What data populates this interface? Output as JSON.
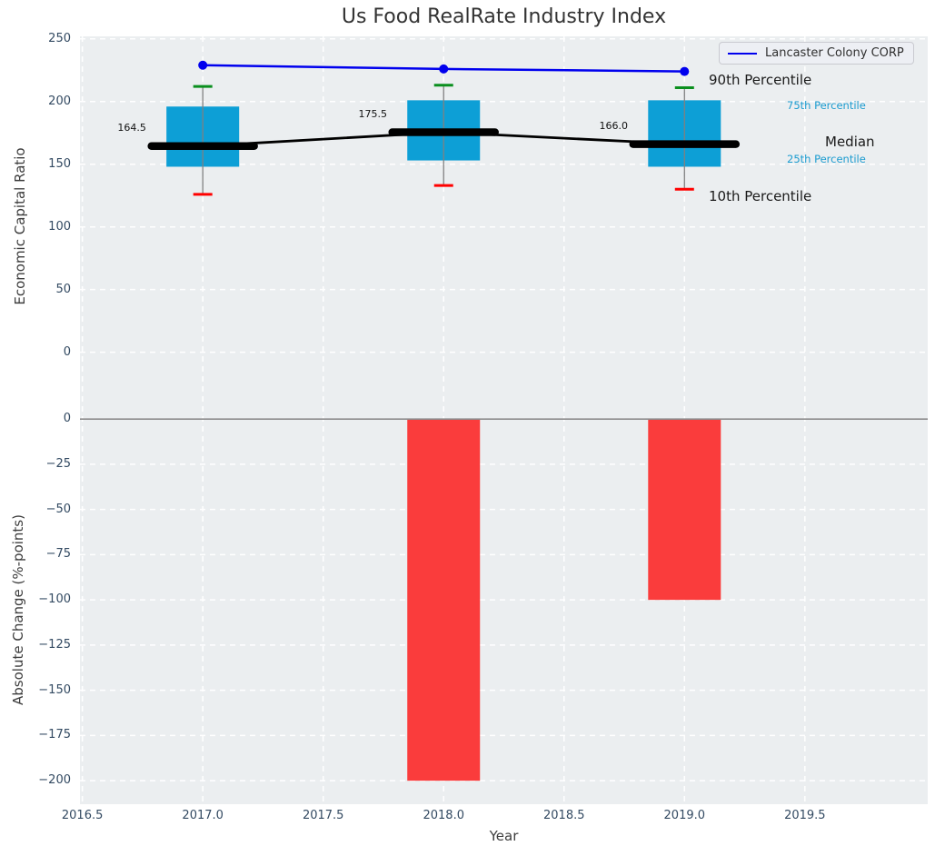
{
  "title": "Us Food RealRate Industry Index",
  "legend": {
    "label": "Lancaster Colony CORP"
  },
  "percentile_labels": {
    "p90": "90th Percentile",
    "p75": "75th Percentile",
    "median": "Median",
    "p25": "25th Percentile",
    "p10": "10th Percentile"
  },
  "axes": {
    "top": {
      "ylabel": "Economic Capital Ratio",
      "ylim": [
        -51,
        252
      ],
      "yticks": [
        {
          "v": 250,
          "label": "250"
        },
        {
          "v": 200,
          "label": "200"
        },
        {
          "v": 150,
          "label": "150"
        },
        {
          "v": 100,
          "label": "100"
        },
        {
          "v": 50,
          "label": "50"
        },
        {
          "v": 0,
          "label": "0"
        }
      ]
    },
    "bottom": {
      "ylabel": "Absolute Change (%-points)",
      "xlabel": "Year",
      "ylim": [
        -213,
        1.6
      ],
      "xlim": [
        2016.49,
        2020.01
      ],
      "yticks": [
        {
          "v": 0,
          "label": "0"
        },
        {
          "v": -25,
          "label": "−25"
        },
        {
          "v": -50,
          "label": "−50"
        },
        {
          "v": -75,
          "label": "−75"
        },
        {
          "v": -100,
          "label": "−100"
        },
        {
          "v": -125,
          "label": "−125"
        },
        {
          "v": -150,
          "label": "−150"
        },
        {
          "v": -175,
          "label": "−175"
        },
        {
          "v": -200,
          "label": "−200"
        }
      ],
      "xticks": [
        {
          "v": 2016.5,
          "label": "2016.5"
        },
        {
          "v": 2017.0,
          "label": "2017.0"
        },
        {
          "v": 2017.5,
          "label": "2017.5"
        },
        {
          "v": 2018.0,
          "label": "2018.0"
        },
        {
          "v": 2018.5,
          "label": "2018.5"
        },
        {
          "v": 2019.0,
          "label": "2019.0"
        },
        {
          "v": 2019.5,
          "label": "2019.5"
        }
      ]
    }
  },
  "chart_data": [
    {
      "type": "boxplot",
      "subplot": "top",
      "title": "Us Food RealRate Industry Index",
      "xlabel": "Year",
      "ylabel": "Economic Capital Ratio",
      "x": [
        2017,
        2018,
        2019
      ],
      "median": [
        164.5,
        175.5,
        166.0
      ],
      "median_labels": [
        "164.5",
        "175.5",
        "166.0"
      ],
      "p75": [
        196,
        201,
        201
      ],
      "p25": [
        148,
        153,
        148
      ],
      "p90": [
        212,
        213,
        211
      ],
      "p10": [
        126,
        133,
        130
      ]
    },
    {
      "type": "line",
      "subplot": "top",
      "name": "Lancaster Colony CORP",
      "x": [
        2017,
        2018,
        2019
      ],
      "values": [
        229,
        226,
        224
      ],
      "legend_position": "upper right"
    },
    {
      "type": "bar",
      "subplot": "bottom",
      "xlabel": "Year",
      "ylabel": "Absolute Change (%-points)",
      "x": [
        2017,
        2018,
        2019
      ],
      "values": [
        0,
        -200,
        -100
      ]
    }
  ],
  "colors": {
    "box_fill": "#0d9fd6",
    "company_line": "#0000ee",
    "median_line": "#000000",
    "p90_cap": "#0a8f1e",
    "p10_cap": "#ff0000",
    "whisker": "#808080",
    "bar_negative": "#fa3c3c",
    "zero_line": "#8c8c8c",
    "axes_bg": "#ebeef0",
    "grid": "#ffffff",
    "tick_text": "#334a62",
    "label_text": "#3d3d3d",
    "percentile_cyan": "#1c9cd0"
  }
}
